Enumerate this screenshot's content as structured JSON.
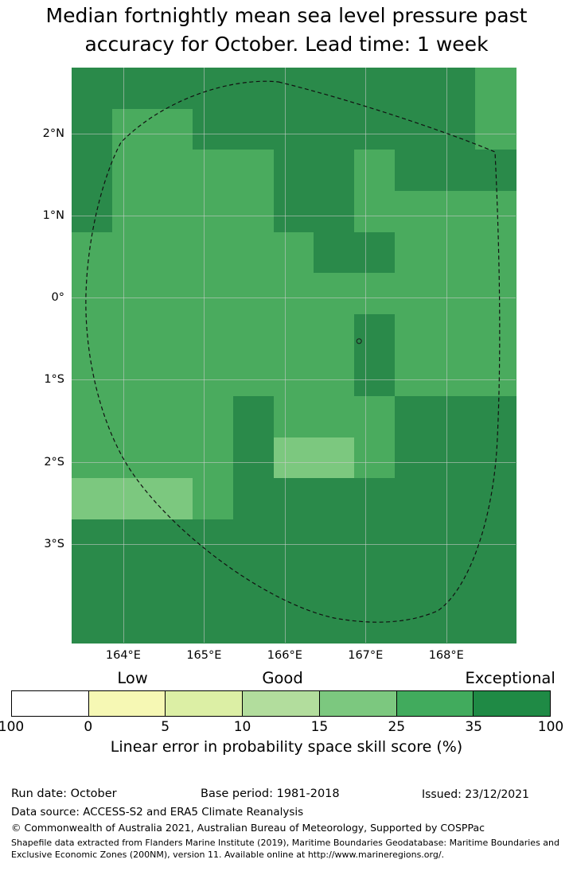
{
  "title": {
    "line1": "Median fortnightly mean sea level pressure past",
    "line2": "accuracy for October. Lead time: 1 week"
  },
  "chart_data": {
    "type": "heatmap",
    "title": "Median fortnightly mean sea level pressure past accuracy for October. Lead time: 1 week",
    "x_ticks": [
      "164°E",
      "165°E",
      "166°E",
      "167°E",
      "168°E"
    ],
    "y_ticks": [
      "2°N",
      "1°N",
      "0°",
      "1°S",
      "2°S",
      "3°S"
    ],
    "grid_lons": [
      164,
      165,
      166,
      167,
      168
    ],
    "grid_lats": [
      2,
      1,
      0,
      -1,
      -2,
      -3
    ],
    "lon_range": [
      163.36,
      168.86
    ],
    "lat_range": [
      -4.2,
      2.8
    ],
    "cell_size_deg": 0.5,
    "grid_rows_top_to_bottom": [
      "33333333332",
      "32233333332",
      "32222332333",
      "32222332222",
      "22222233222",
      "22222222222",
      "22222223222",
      "22222223222",
      "22223222333",
      "22223112333",
      "11123333333",
      "33333333333",
      "33333333333",
      "33333333333"
    ],
    "value_colors": {
      "1": "#7cc87f",
      "2": "#4aab5e",
      "3": "#2a8a4a"
    },
    "value_meaning_skill_pct": {
      "1": "15-25",
      "2": "25-35",
      "3": "35-100"
    },
    "boundary": "dashed EEZ (Exclusive Economic Zone) outline",
    "island_marker": {
      "lon": 166.92,
      "lat": -0.53
    },
    "colorbar": {
      "labels_above": [
        "Low",
        "Good",
        "Exceptional"
      ],
      "tick_labels": [
        "100",
        "0",
        "5",
        "10",
        "15",
        "25",
        "35",
        "100"
      ],
      "segment_colors": [
        "#ffffff",
        "#f6f8b4",
        "#dcefa5",
        "#b2dd9d",
        "#7cc87f",
        "#41ab5d",
        "#1f8a45"
      ],
      "caption": "Linear error in probability space skill score (%)"
    }
  },
  "footer": {
    "run_date": "Run date: October",
    "base_period": "Base period: 1981-2018",
    "issued": "Issued: 23/12/2021",
    "data_source": "Data source: ACCESS-S2 and ERA5 Climate Reanalysis",
    "copyright": "© Commonwealth of Australia 2021, Australian Bureau of Meteorology, Supported by COSPPac",
    "shapefile_note": "Shapefile data extracted from Flanders Marine Institute (2019), Maritime Boundaries Geodatabase: Maritime Boundaries and Exclusive Economic Zones (200NM), version 11. Available online at http://www.marineregions.org/."
  }
}
